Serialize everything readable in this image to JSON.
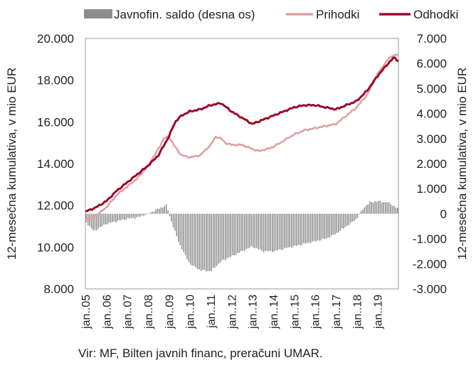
{
  "chart_data": {
    "type": "line",
    "legend": {
      "position": "top",
      "entries": [
        {
          "name": "Javnofin. saldo (desna os)",
          "kind": "bar",
          "color": "#8c8c8c"
        },
        {
          "name": "Prihodki",
          "kind": "line",
          "color": "#e0a0a0"
        },
        {
          "name": "Odhodki",
          "kind": "line",
          "color": "#9b0a2c"
        }
      ]
    },
    "ylabel": "12-mesečna kumulativa, v mio EUR",
    "y2label": "12-mesečna kumulativa, v mio EUR",
    "ylim": [
      8000,
      20000
    ],
    "y2lim": [
      -3000,
      7000
    ],
    "yticks": [
      "8.000",
      "10.000",
      "12.000",
      "14.000",
      "16.000",
      "18.000",
      "20.000"
    ],
    "y2ticks": [
      "-3.000",
      "-2.000",
      "-1.000",
      "0",
      "1.000",
      "2.000",
      "3.000",
      "4.000",
      "5.000",
      "6.000",
      "7.000"
    ],
    "xticks": [
      "jan..05",
      "jan..06",
      "jan..07",
      "jan..08",
      "jan..09",
      "jan..10",
      "jan..11",
      "jan..12",
      "jan..13",
      "jan..14",
      "jan..15",
      "jan..16",
      "jan..17",
      "jan..18",
      "jan..19"
    ],
    "x_start_year": 2005,
    "grid": false,
    "series": [
      {
        "name": "Prihodki",
        "type": "line",
        "axis": "left",
        "color": "#e0a0a0",
        "knots": [
          [
            2005.0,
            11300
          ],
          [
            2005.5,
            11500
          ],
          [
            2006.0,
            11900
          ],
          [
            2006.5,
            12500
          ],
          [
            2007.0,
            12900
          ],
          [
            2007.5,
            13300
          ],
          [
            2008.0,
            13900
          ],
          [
            2008.5,
            14700
          ],
          [
            2008.75,
            15200
          ],
          [
            2009.0,
            15300
          ],
          [
            2009.3,
            14800
          ],
          [
            2009.6,
            14400
          ],
          [
            2010.0,
            14300
          ],
          [
            2010.5,
            14400
          ],
          [
            2011.0,
            14900
          ],
          [
            2011.25,
            15300
          ],
          [
            2011.5,
            15200
          ],
          [
            2011.7,
            15000
          ],
          [
            2012.0,
            14900
          ],
          [
            2012.5,
            14900
          ],
          [
            2013.0,
            14700
          ],
          [
            2013.3,
            14600
          ],
          [
            2013.7,
            14700
          ],
          [
            2014.0,
            14800
          ],
          [
            2014.5,
            15100
          ],
          [
            2015.0,
            15400
          ],
          [
            2015.5,
            15600
          ],
          [
            2016.0,
            15700
          ],
          [
            2016.5,
            15800
          ],
          [
            2017.0,
            15900
          ],
          [
            2017.5,
            16300
          ],
          [
            2018.0,
            16700
          ],
          [
            2018.5,
            17300
          ],
          [
            2019.0,
            18300
          ],
          [
            2019.5,
            19000
          ],
          [
            2019.75,
            19200
          ],
          [
            2020.0,
            19200
          ]
        ]
      },
      {
        "name": "Odhodki",
        "type": "line",
        "axis": "left",
        "color": "#9b0a2c",
        "knots": [
          [
            2005.0,
            11700
          ],
          [
            2005.5,
            11900
          ],
          [
            2006.0,
            12200
          ],
          [
            2006.5,
            12700
          ],
          [
            2007.0,
            13100
          ],
          [
            2007.5,
            13500
          ],
          [
            2008.0,
            13900
          ],
          [
            2008.5,
            14400
          ],
          [
            2009.0,
            15300
          ],
          [
            2009.3,
            16000
          ],
          [
            2009.6,
            16300
          ],
          [
            2010.0,
            16500
          ],
          [
            2010.5,
            16600
          ],
          [
            2011.0,
            16800
          ],
          [
            2011.5,
            16900
          ],
          [
            2012.0,
            16500
          ],
          [
            2012.5,
            16200
          ],
          [
            2013.0,
            15900
          ],
          [
            2013.5,
            16100
          ],
          [
            2014.0,
            16300
          ],
          [
            2014.5,
            16500
          ],
          [
            2015.0,
            16700
          ],
          [
            2015.5,
            16800
          ],
          [
            2016.0,
            16800
          ],
          [
            2016.5,
            16700
          ],
          [
            2017.0,
            16600
          ],
          [
            2017.5,
            16800
          ],
          [
            2018.0,
            17000
          ],
          [
            2018.5,
            17500
          ],
          [
            2019.0,
            18200
          ],
          [
            2019.5,
            18800
          ],
          [
            2019.8,
            19100
          ],
          [
            2020.0,
            18900
          ]
        ]
      },
      {
        "name": "Javnofin. saldo (desna os)",
        "type": "bar",
        "axis": "right",
        "color": "#8c8c8c",
        "knots": [
          [
            2005.0,
            -300
          ],
          [
            2005.4,
            -700
          ],
          [
            2006.0,
            -400
          ],
          [
            2006.5,
            -300
          ],
          [
            2007.0,
            -200
          ],
          [
            2007.5,
            -150
          ],
          [
            2008.0,
            0
          ],
          [
            2008.5,
            200
          ],
          [
            2008.9,
            350
          ],
          [
            2009.0,
            0
          ],
          [
            2009.2,
            -500
          ],
          [
            2009.5,
            -1200
          ],
          [
            2010.0,
            -2000
          ],
          [
            2010.5,
            -2250
          ],
          [
            2011.0,
            -2300
          ],
          [
            2011.5,
            -1900
          ],
          [
            2012.0,
            -1700
          ],
          [
            2012.5,
            -1500
          ],
          [
            2013.0,
            -1300
          ],
          [
            2013.5,
            -1500
          ],
          [
            2014.0,
            -1500
          ],
          [
            2014.5,
            -1400
          ],
          [
            2015.0,
            -1300
          ],
          [
            2015.5,
            -1200
          ],
          [
            2016.0,
            -1100
          ],
          [
            2016.5,
            -1000
          ],
          [
            2017.0,
            -800
          ],
          [
            2017.5,
            -500
          ],
          [
            2018.0,
            -200
          ],
          [
            2018.3,
            200
          ],
          [
            2018.6,
            450
          ],
          [
            2019.0,
            500
          ],
          [
            2019.5,
            450
          ],
          [
            2019.8,
            300
          ],
          [
            2020.0,
            200
          ]
        ]
      }
    ]
  },
  "source": "Vir: MF, Bilten javnih financ, preračuni UMAR."
}
